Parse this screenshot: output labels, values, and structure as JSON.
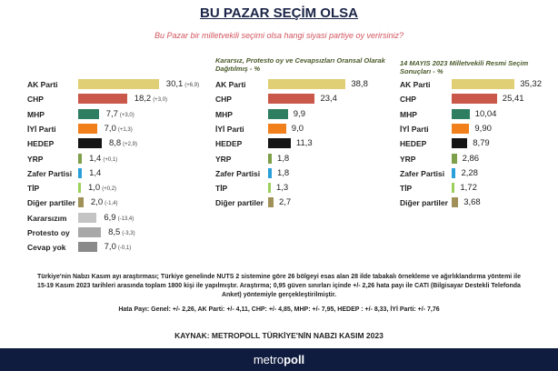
{
  "header": {
    "title": "BU PAZAR SEÇİM OLSA",
    "subtitle": "Bu Pazar bir milletvekili seçimi olsa hangi siyasi partiye oy verirsiniz?"
  },
  "chart_data": [
    {
      "type": "bar",
      "orientation": "horizontal",
      "title": "",
      "categories": [
        "AK Parti",
        "CHP",
        "MHP",
        "İYİ Parti",
        "HEDEP",
        "YRP",
        "Zafer Partisi",
        "TİP",
        "Diğer partiler",
        "Kararsızım",
        "Protesto oy",
        "Cevap yok"
      ],
      "values": [
        30.1,
        18.2,
        7.7,
        7.0,
        8.8,
        1.4,
        1.4,
        1.0,
        2.0,
        6.9,
        8.5,
        7.0
      ],
      "value_labels": [
        "30,1",
        "18,2",
        "7,7",
        "7,0",
        "8,8",
        "1,4",
        "1,4",
        "1,0",
        "2,0",
        "6,9",
        "8,5",
        "7,0"
      ],
      "changes": [
        "(+6,9)",
        "(+3,0)",
        "(+3,0)",
        "(+1,3)",
        "(+2,9)",
        "(+0,1)",
        "",
        "(+0,2)",
        "(-1,4)",
        "(-13,4)",
        "(-3,3)",
        "(-0,1)"
      ]
    },
    {
      "type": "bar",
      "orientation": "horizontal",
      "title": "Kararsız, Protesto oy ve Cevapsızları Oransal Olarak Dağıtılmış - %",
      "categories": [
        "AK Parti",
        "CHP",
        "MHP",
        "İYİ Parti",
        "HEDEP",
        "YRP",
        "Zafer Partisi",
        "TİP",
        "Diğer partiler"
      ],
      "values": [
        38.8,
        23.4,
        9.9,
        9.0,
        11.3,
        1.8,
        1.8,
        1.3,
        2.7
      ],
      "value_labels": [
        "38,8",
        "23,4",
        "9,9",
        "9,0",
        "11,3",
        "1,8",
        "1,8",
        "1,3",
        "2,7"
      ]
    },
    {
      "type": "bar",
      "orientation": "horizontal",
      "title": "14 MAYIS 2023 Milletvekili Resmi Seçim Sonuçları - %",
      "categories": [
        "AK Parti",
        "CHP",
        "MHP",
        "İYİ Parti",
        "HEDEP",
        "YRP",
        "Zafer Partisi",
        "TİP",
        "Diğer partiler"
      ],
      "values": [
        35.32,
        25.41,
        10.04,
        9.9,
        8.79,
        2.86,
        2.28,
        1.72,
        3.68
      ],
      "value_labels": [
        "35,32",
        "25,41",
        "10,04",
        "9,90",
        "8,79",
        "2,86",
        "2,28",
        "1,72",
        "3,68"
      ]
    }
  ],
  "colors": [
    "#e0cf75",
    "#c9574a",
    "#2e7f62",
    "#f07f1c",
    "#151515",
    "#7ea04a",
    "#2a9fd9",
    "#9bd05a",
    "#a09158",
    "#c4c4c4",
    "#a8a8a8",
    "#8a8a8a"
  ],
  "notes": {
    "methodology": "Türkiye'nin Nabzı Kasım ayı araştırması; Türkiye genelinde NUTS 2 sistemine göre 26 bölgeyi esas alan 28 ilde tabakalı örnekleme ve ağırlıklandırma yöntemi ile 15-19 Kasım 2023 tarihleri arasında toplam 1800 kişi ile yapılmıştır. Araştırma; 0,95 güven sınırları içinde +/- 2,26 hata payı ile CATI (Bilgisayar Destekli Telefonda Anket) yöntemiyle gerçekleştirilmiştir.",
    "margin_of_error": "Hata Payı: Genel: +/- 2,26, AK Parti: +/- 4,11, CHP: +/- 4,85, MHP: +/- 7,95, HEDEP : +/- 8,33, İYİ Parti: +/- 7,76",
    "source": "KAYNAK: METROPOLL TÜRKİYE'NİN NABZI KASIM 2023"
  },
  "footer": {
    "logo_text": "metropoll",
    "logo_regular": "metro",
    "logo_bold": "poll"
  }
}
